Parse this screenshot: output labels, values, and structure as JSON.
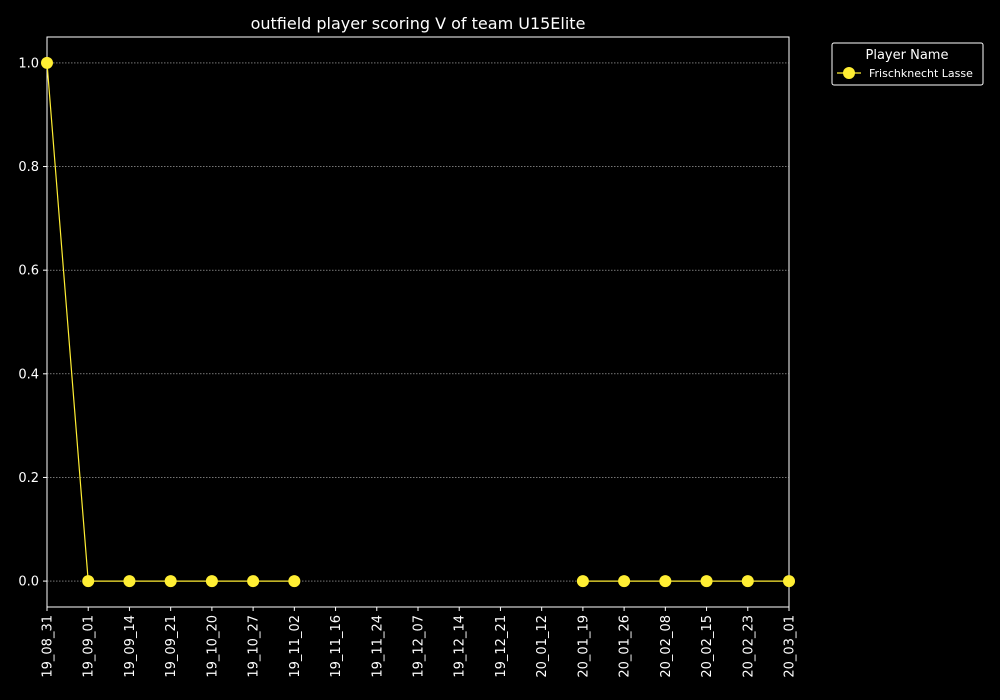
{
  "chart_data": {
    "type": "line",
    "title": "outfield player scoring V of team U15Elite",
    "xlabel": "",
    "ylabel": "",
    "categories": [
      "19_08_31",
      "19_09_01",
      "19_09_14",
      "19_09_21",
      "19_10_20",
      "19_10_27",
      "19_11_02",
      "19_11_16",
      "19_11_24",
      "19_12_07",
      "19_12_14",
      "19_12_21",
      "20_01_12",
      "20_01_19",
      "20_01_26",
      "20_02_08",
      "20_02_15",
      "20_02_23",
      "20_03_01"
    ],
    "ylim": [
      -0.05,
      1.05
    ],
    "yticks": [
      "0.0",
      "0.2",
      "0.4",
      "0.6",
      "0.8",
      "1.0"
    ],
    "grid": "y-dotted",
    "legend": {
      "title": "Player Name",
      "placement": "upper-right-outside"
    },
    "series": [
      {
        "name": "Frischknecht Lasse",
        "color": "#ffee33",
        "values": [
          1,
          0,
          0,
          0,
          0,
          0,
          0,
          null,
          null,
          null,
          null,
          null,
          null,
          0,
          0,
          0,
          0,
          0,
          0
        ]
      }
    ]
  },
  "colors": {
    "background": "#000000",
    "axes": "#ffffff",
    "grid": "#bbbbbb",
    "line": "#ffee33"
  }
}
